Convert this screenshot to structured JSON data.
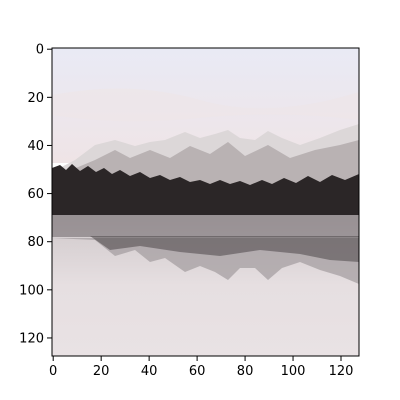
{
  "chart_data": {
    "type": "image",
    "title": "",
    "xlabel": "",
    "ylabel": "",
    "image_width": 128,
    "image_height": 128,
    "xlim": [
      -0.5,
      127.5
    ],
    "ylim": [
      127.5,
      -0.5
    ],
    "x_ticks": [
      0,
      20,
      40,
      60,
      80,
      100,
      120
    ],
    "y_ticks": [
      0,
      20,
      40,
      60,
      80,
      100,
      120
    ],
    "grid": false,
    "legend": "none",
    "image_content": "grayscale-like landscape photo: snowy mountain range, dark forest band, lake reflection, pale pinkish sky",
    "colors": {
      "sky_top": "#e9eaf5",
      "sky_bottom": "#efe6e8",
      "mountain_light": "#e2dedf",
      "mountain_shade": "#9a9496",
      "forest": "#2a2526",
      "water": "#d8d2d4",
      "water_light": "#ebe4e6"
    }
  }
}
